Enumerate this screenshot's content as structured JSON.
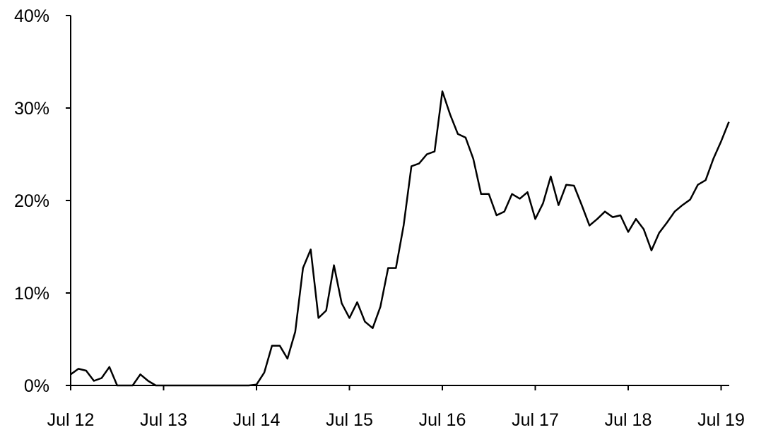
{
  "chart_data": {
    "type": "line",
    "title": "",
    "xlabel": "",
    "ylabel": "",
    "ylim": [
      0,
      40
    ],
    "y_ticks": [
      "0%",
      "10%",
      "20%",
      "30%",
      "40%"
    ],
    "y_tick_values": [
      0,
      10,
      20,
      30,
      40
    ],
    "x_ticks": [
      "Jul 12",
      "Jul 13",
      "Jul 14",
      "Jul 15",
      "Jul 16",
      "Jul 17",
      "Jul 18",
      "Jul 19"
    ],
    "x_tick_dates": [
      "2012-07",
      "2013-07",
      "2014-07",
      "2015-07",
      "2016-07",
      "2017-07",
      "2018-07",
      "2019-07"
    ],
    "xlim": [
      "2012-07",
      "2019-08"
    ],
    "grid": false,
    "legend": "none",
    "line_color": "#000000",
    "series": [
      {
        "x": [
          "2012-07",
          "2012-08",
          "2012-09",
          "2012-10",
          "2012-11",
          "2012-12",
          "2013-01",
          "2013-02",
          "2013-03",
          "2013-04",
          "2013-05",
          "2013-06",
          "2013-07",
          "2013-08",
          "2013-09",
          "2013-10",
          "2013-11",
          "2013-12",
          "2014-01",
          "2014-02",
          "2014-03",
          "2014-04",
          "2014-05",
          "2014-06",
          "2014-07",
          "2014-08",
          "2014-09",
          "2014-10",
          "2014-11",
          "2014-12",
          "2015-01",
          "2015-02",
          "2015-03",
          "2015-04",
          "2015-05",
          "2015-06",
          "2015-07",
          "2015-08",
          "2015-09",
          "2015-10",
          "2015-11",
          "2015-12",
          "2016-01",
          "2016-02",
          "2016-03",
          "2016-04",
          "2016-05",
          "2016-06",
          "2016-07",
          "2016-08",
          "2016-09",
          "2016-10",
          "2016-11",
          "2016-12",
          "2017-01",
          "2017-02",
          "2017-03",
          "2017-04",
          "2017-05",
          "2017-06",
          "2017-07",
          "2017-08",
          "2017-09",
          "2017-10",
          "2017-11",
          "2017-12",
          "2018-01",
          "2018-02",
          "2018-03",
          "2018-04",
          "2018-05",
          "2018-06",
          "2018-07",
          "2018-08",
          "2018-09",
          "2018-10",
          "2018-11",
          "2018-12",
          "2019-01",
          "2019-02",
          "2019-03",
          "2019-04",
          "2019-05",
          "2019-06",
          "2019-07",
          "2019-08"
        ],
        "y": [
          1.2,
          1.8,
          1.6,
          0.5,
          0.8,
          2.0,
          0,
          0,
          0,
          1.2,
          0.5,
          0,
          0,
          0,
          0,
          0,
          0,
          0,
          0,
          0,
          0,
          0,
          0,
          0,
          0.1,
          1.4,
          4.3,
          4.3,
          2.9,
          5.8,
          12.7,
          14.7,
          7.3,
          8.1,
          13.0,
          8.9,
          7.3,
          9.0,
          6.9,
          6.2,
          8.5,
          12.7,
          12.7,
          17.3,
          23.7,
          24.0,
          25.0,
          25.3,
          31.8,
          29.3,
          27.2,
          26.8,
          24.5,
          20.7,
          20.7,
          18.4,
          18.8,
          20.7,
          20.2,
          20.9,
          18.0,
          19.7,
          22.6,
          19.5,
          21.7,
          21.6,
          19.5,
          17.3,
          18.0,
          18.8,
          18.2,
          18.4,
          16.6,
          18.0,
          16.9,
          14.6,
          16.5,
          17.6,
          18.8,
          19.5,
          20.1,
          21.7,
          22.2,
          24.5,
          26.4,
          28.5
        ]
      }
    ]
  }
}
